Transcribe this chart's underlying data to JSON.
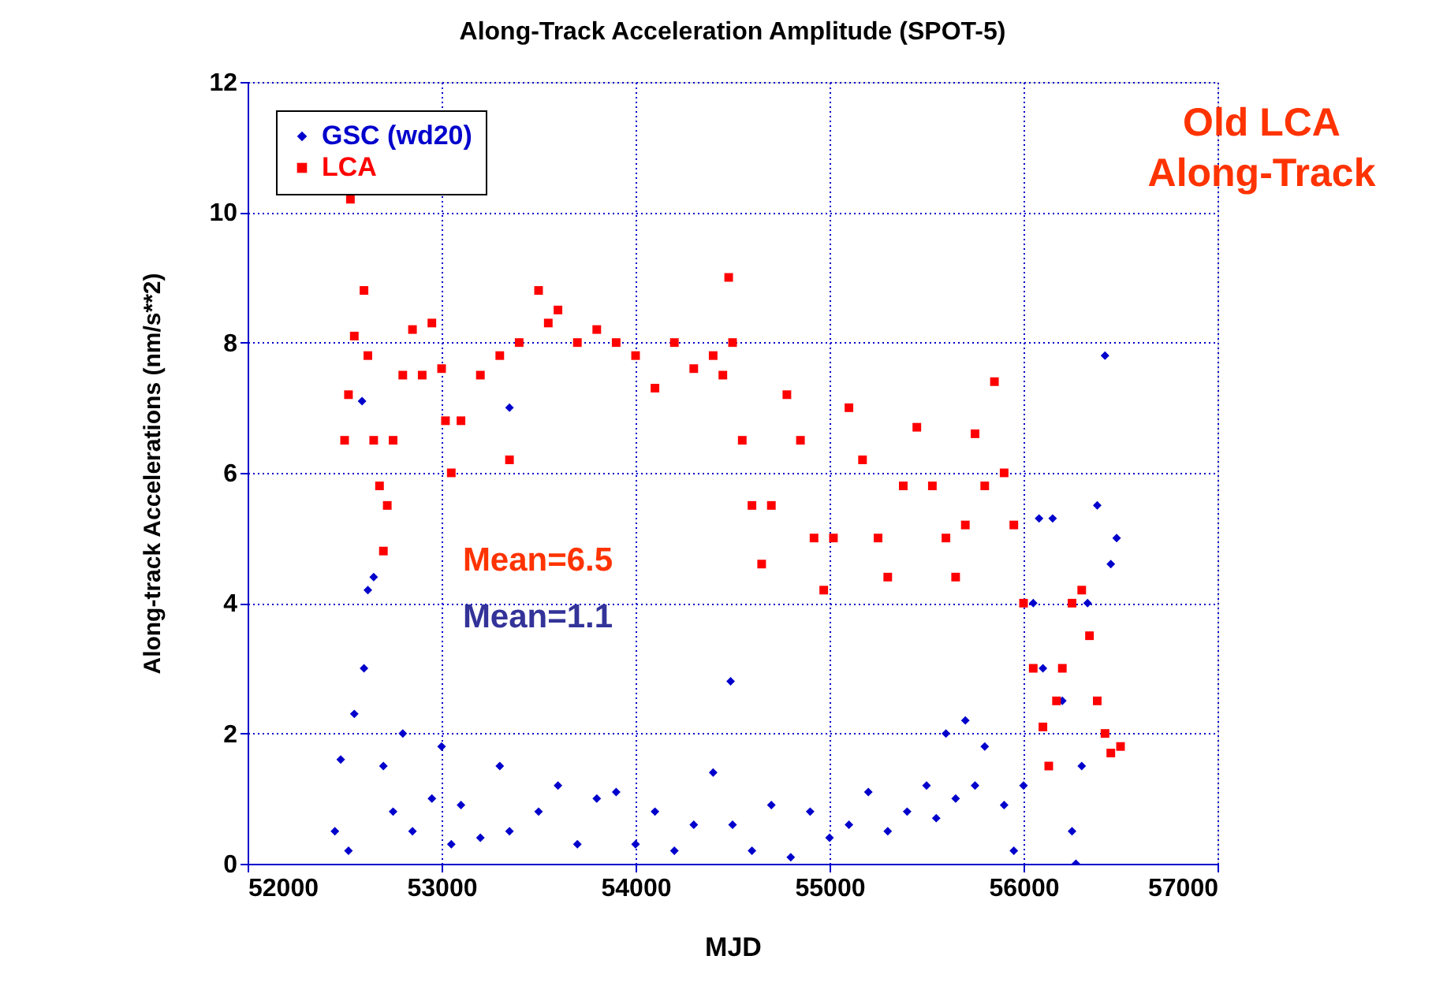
{
  "chart_data": {
    "type": "scatter",
    "title": "Along-Track Acceleration Amplitude (SPOT-5)",
    "xlabel": "MJD",
    "ylabel": "Along-track Accelerations (nm/s**2)",
    "xlim": [
      52000,
      57000
    ],
    "xticks": [
      52000,
      53000,
      54000,
      55000,
      56000,
      57000
    ],
    "ylim": [
      0,
      12
    ],
    "yticks": [
      0,
      2,
      4,
      6,
      8,
      10,
      12
    ],
    "grid": true,
    "legend": "top left",
    "annotations": [
      "Old LCA\nAlong-Track",
      "Mean=6.5",
      "Mean=1.1"
    ],
    "series": [
      {
        "name": "GSC (wd20)",
        "color": "#0000cc",
        "marker": "diamond",
        "x": [
          52450,
          52480,
          52520,
          52550,
          52590,
          52600,
          52620,
          52650,
          52700,
          52750,
          52800,
          52850,
          52950,
          53000,
          53050,
          53100,
          53200,
          53300,
          53350,
          53350,
          53500,
          53600,
          53700,
          53800,
          53900,
          54000,
          54100,
          54200,
          54300,
          54400,
          54490,
          54500,
          54600,
          54700,
          54800,
          54900,
          55000,
          55100,
          55200,
          55300,
          55400,
          55500,
          55550,
          55600,
          55650,
          55700,
          55750,
          55800,
          55900,
          55950,
          56000,
          56050,
          56080,
          56100,
          56150,
          56200,
          56250,
          56270,
          56300,
          56330,
          56380,
          56420,
          56450,
          56480
        ],
        "values": [
          0.5,
          1.6,
          0.2,
          2.3,
          7.1,
          3.0,
          4.2,
          4.4,
          1.5,
          0.8,
          2.0,
          0.5,
          1.0,
          1.8,
          0.3,
          0.9,
          0.4,
          1.5,
          0.5,
          7.0,
          0.8,
          1.2,
          0.3,
          1.0,
          1.1,
          0.3,
          0.8,
          0.2,
          0.6,
          1.4,
          2.8,
          0.6,
          0.2,
          0.9,
          0.1,
          0.8,
          0.4,
          0.6,
          1.1,
          0.5,
          0.8,
          1.2,
          0.7,
          2.0,
          1.0,
          2.2,
          1.2,
          1.8,
          0.9,
          0.2,
          1.2,
          4.0,
          5.3,
          3.0,
          5.3,
          2.5,
          0.5,
          0.0,
          1.5,
          4.0,
          5.5,
          7.8,
          4.6,
          5.0
        ]
      },
      {
        "name": "LCA",
        "color": "#ff0000",
        "marker": "square",
        "x": [
          52500,
          52520,
          52530,
          52550,
          52600,
          52620,
          52650,
          52680,
          52700,
          52720,
          52750,
          52800,
          52850,
          52900,
          52950,
          53000,
          53020,
          53050,
          53100,
          53200,
          53300,
          53350,
          53400,
          53500,
          53550,
          53600,
          53700,
          53800,
          53900,
          54000,
          54100,
          54200,
          54300,
          54400,
          54450,
          54480,
          54500,
          54550,
          54600,
          54650,
          54700,
          54780,
          54850,
          54920,
          54970,
          55020,
          55100,
          55170,
          55250,
          55300,
          55380,
          55450,
          55530,
          55600,
          55650,
          55700,
          55750,
          55800,
          55850,
          55900,
          55950,
          56000,
          56050,
          56100,
          56130,
          56170,
          56200,
          56250,
          56300,
          56340,
          56380,
          56420,
          56450,
          56500
        ],
        "values": [
          6.5,
          7.2,
          10.2,
          8.1,
          8.8,
          7.8,
          6.5,
          5.8,
          4.8,
          5.5,
          6.5,
          7.5,
          8.2,
          7.5,
          8.3,
          7.6,
          6.8,
          6.0,
          6.8,
          7.5,
          7.8,
          6.2,
          8.0,
          8.8,
          8.3,
          8.5,
          8.0,
          8.2,
          8.0,
          7.8,
          7.3,
          8.0,
          7.6,
          7.8,
          7.5,
          9.0,
          8.0,
          6.5,
          5.5,
          4.6,
          5.5,
          7.2,
          6.5,
          5.0,
          4.2,
          5.0,
          7.0,
          6.2,
          5.0,
          4.4,
          5.8,
          6.7,
          5.8,
          5.0,
          4.4,
          5.2,
          6.6,
          5.8,
          7.4,
          6.0,
          5.2,
          4.0,
          3.0,
          2.1,
          1.5,
          2.5,
          3.0,
          4.0,
          4.2,
          3.5,
          2.5,
          2.0,
          1.7,
          1.8
        ]
      }
    ]
  }
}
